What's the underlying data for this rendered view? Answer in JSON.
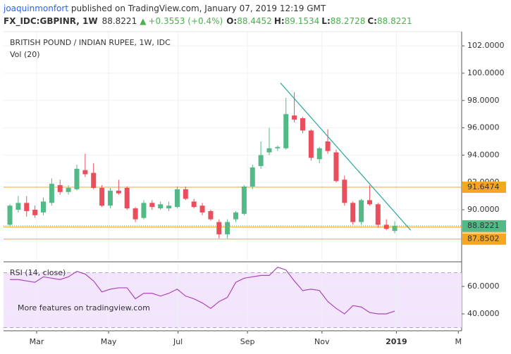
{
  "header": {
    "author": "joaquinmonfort",
    "published": " published on TradingView.com, January 07, 2019 12:19 GMT",
    "symbol": "FX_IDC:GBPINR, 1W",
    "price": 88.8221,
    "arrow": "▲",
    "change": "+0.3553 (+0.4%)",
    "ohlc": [
      {
        "label": "O:",
        "value": 88.4452
      },
      {
        "label": "H:",
        "value": 89.1534
      },
      {
        "label": "L:",
        "value": 88.2728
      },
      {
        "label": "C:",
        "value": 88.8221
      }
    ]
  },
  "chart_data": [
    {
      "type": "candlestick",
      "title": "BRITISH POUND / INDIAN RUPEE, 1W, IDC",
      "subtitle": "Vol (20)",
      "up_color": "#53b987",
      "down_color": "#eb4d5c",
      "x": [
        0,
        1,
        2,
        3,
        4,
        5,
        6,
        7,
        8,
        9,
        10,
        11,
        12,
        13,
        14,
        15,
        16,
        17,
        18,
        19,
        20,
        21,
        22,
        23,
        24,
        25,
        26,
        27,
        28,
        29,
        30,
        31,
        32,
        33,
        34,
        35,
        36,
        37,
        38,
        39,
        40,
        41,
        42,
        43,
        44,
        45,
        46
      ],
      "open": [
        88.9,
        90.0,
        90.5,
        90.0,
        89.8,
        90.5,
        91.8,
        91.3,
        91.5,
        92.9,
        92.7,
        91.6,
        90.3,
        91.4,
        91.6,
        90.1,
        89.4,
        90.5,
        90.1,
        90.1,
        90.2,
        91.5,
        90.6,
        90.3,
        89.9,
        89.1,
        88.2,
        89.3,
        89.7,
        91.7,
        93.2,
        94.2,
        94.5,
        94.5,
        96.9,
        96.7,
        95.8,
        93.7,
        95.0,
        94.2,
        92.2,
        90.5,
        89.1,
        90.7,
        90.4,
        88.9,
        88.4452
      ],
      "high": [
        90.4,
        91.0,
        91.0,
        90.3,
        90.9,
        92.3,
        92.2,
        91.8,
        93.3,
        94.1,
        93.4,
        91.8,
        91.6,
        92.2,
        91.7,
        90.2,
        90.7,
        90.7,
        90.6,
        90.6,
        91.7,
        91.7,
        90.8,
        90.5,
        90.0,
        89.3,
        89.3,
        89.9,
        91.8,
        93.3,
        95.0,
        96.0,
        94.7,
        98.2,
        98.6,
        96.8,
        95.9,
        94.6,
        95.9,
        94.4,
        92.5,
        90.6,
        90.8,
        91.8,
        90.5,
        89.3,
        89.1534
      ],
      "low": [
        88.8,
        89.8,
        89.5,
        89.4,
        89.6,
        90.3,
        91.1,
        91.1,
        91.4,
        92.4,
        91.5,
        90.2,
        90.1,
        91.1,
        90.0,
        89.1,
        89.3,
        90.0,
        90.0,
        89.9,
        90.1,
        90.7,
        90.1,
        89.6,
        89.2,
        87.9,
        87.9,
        89.1,
        89.6,
        91.5,
        93.0,
        94.0,
        94.3,
        94.4,
        96.4,
        95.6,
        93.6,
        93.4,
        94.1,
        92.0,
        90.3,
        88.9,
        88.9,
        90.3,
        88.7,
        88.5,
        88.2728
      ],
      "close": [
        90.3,
        90.5,
        89.9,
        89.6,
        90.6,
        91.9,
        91.3,
        91.6,
        93.0,
        92.6,
        91.6,
        90.3,
        91.4,
        91.2,
        90.1,
        89.3,
        90.5,
        90.2,
        90.4,
        90.3,
        91.5,
        90.8,
        90.2,
        89.8,
        89.3,
        88.2,
        89.1,
        89.8,
        91.7,
        93.1,
        94.0,
        94.5,
        94.6,
        97.0,
        96.6,
        95.8,
        93.8,
        94.5,
        94.3,
        92.1,
        90.5,
        89.1,
        90.7,
        90.4,
        88.9,
        88.6,
        88.8221
      ],
      "xlim": [
        -0.76,
        54
      ],
      "ylim": [
        86.29,
        103.04
      ],
      "xticks": [
        {
          "value": 3.2,
          "label": "Mar"
        },
        {
          "value": 11.8,
          "label": "May"
        },
        {
          "value": 20.1,
          "label": "Jul"
        },
        {
          "value": 28.4,
          "label": "Sep"
        },
        {
          "value": 37.3,
          "label": "Nov"
        },
        {
          "value": 46.2,
          "label": "2019"
        },
        {
          "value": 53.6,
          "label": "M"
        }
      ],
      "yticks": [
        {
          "value": 90,
          "label": "90.0000"
        },
        {
          "value": 92,
          "label": "92.0000"
        },
        {
          "value": 94,
          "label": "94.0000"
        },
        {
          "value": 96,
          "label": "96.0000"
        },
        {
          "value": 98,
          "label": "98.0000"
        },
        {
          "value": 100,
          "label": "100.0000"
        },
        {
          "value": 102,
          "label": "102.0000"
        }
      ],
      "levels": [
        {
          "value": 91.6474,
          "color": "#f5a623"
        },
        {
          "value": 88.7334,
          "color": "#f5a623"
        },
        {
          "value": 87.8502,
          "color": "#f5a623"
        }
      ],
      "last_price": {
        "value": 88.8221,
        "color": "#53b987"
      },
      "trendline": {
        "x": [
          32.35,
          47.9
        ],
        "y": [
          99.28,
          88.5
        ],
        "color": "#26a69a"
      },
      "grid": true
    },
    {
      "type": "line",
      "title": "RSI (14, close)",
      "annotation": "More features on tradingview.com",
      "series": [
        {
          "name": "RSI",
          "color": "#ab47bc",
          "values": [
            65,
            65,
            64,
            63,
            67,
            66,
            65,
            67,
            71,
            69,
            64,
            56,
            58,
            59,
            59,
            51,
            55,
            55,
            53,
            55,
            58,
            53,
            51,
            48,
            44,
            49,
            52,
            63,
            66,
            67,
            68,
            68,
            74,
            72,
            64,
            57,
            58,
            57,
            49,
            44,
            40,
            46,
            45,
            41,
            40,
            40,
            42
          ]
        }
      ],
      "band": [
        30,
        70
      ],
      "band_color": "#f3e5fc",
      "ylim": [
        27.7,
        76.4
      ],
      "yticks": [
        {
          "value": 40,
          "label": "40.0000"
        },
        {
          "value": 60,
          "label": "60.0000"
        }
      ]
    }
  ]
}
